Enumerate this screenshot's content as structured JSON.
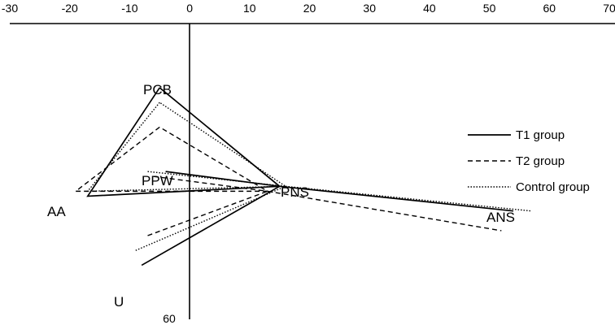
{
  "chart_data": {
    "type": "line",
    "x_ticks": [
      "-30",
      "-20",
      "-10",
      "0",
      "10",
      "20",
      "30",
      "40",
      "50",
      "60",
      "70"
    ],
    "y_tick_label": "60",
    "xlim": [
      -30,
      70
    ],
    "legend_position": "right",
    "point_labels": [
      "PCB",
      "PPW",
      "AA",
      "PNS",
      "ANS",
      "U"
    ],
    "series": [
      {
        "name": "T1 group",
        "dash": "solid",
        "color": "#000000",
        "triangle": [
          [
            -5,
            13
          ],
          [
            -17,
            35
          ],
          [
            15,
            33
          ]
        ],
        "palatal_line": [
          [
            15,
            33
          ],
          [
            54,
            38
          ]
        ],
        "ppw_line": [
          [
            -4,
            30
          ],
          [
            15,
            33
          ]
        ],
        "u_line": [
          [
            -8,
            49
          ],
          [
            15,
            33
          ]
        ]
      },
      {
        "name": "T2 group",
        "dash": "dashed",
        "color": "#000000",
        "triangle": [
          [
            -5,
            21
          ],
          [
            -19,
            34
          ],
          [
            13,
            34
          ]
        ],
        "palatal_line": [
          [
            13,
            34
          ],
          [
            52,
            42
          ]
        ],
        "ppw_line": [
          [
            -6,
            31
          ],
          [
            13,
            34
          ]
        ],
        "u_line": [
          [
            -7,
            43
          ],
          [
            13,
            34
          ]
        ]
      },
      {
        "name": "Control group",
        "dash": "dotted",
        "color": "#000000",
        "triangle": [
          [
            -5,
            16
          ],
          [
            -17,
            34
          ],
          [
            16,
            33
          ]
        ],
        "palatal_line": [
          [
            16,
            33
          ],
          [
            57,
            38
          ]
        ],
        "ppw_line": [
          [
            -7,
            30
          ],
          [
            16,
            33
          ]
        ],
        "u_line": [
          [
            -9,
            46
          ],
          [
            16,
            33
          ]
        ]
      }
    ]
  }
}
